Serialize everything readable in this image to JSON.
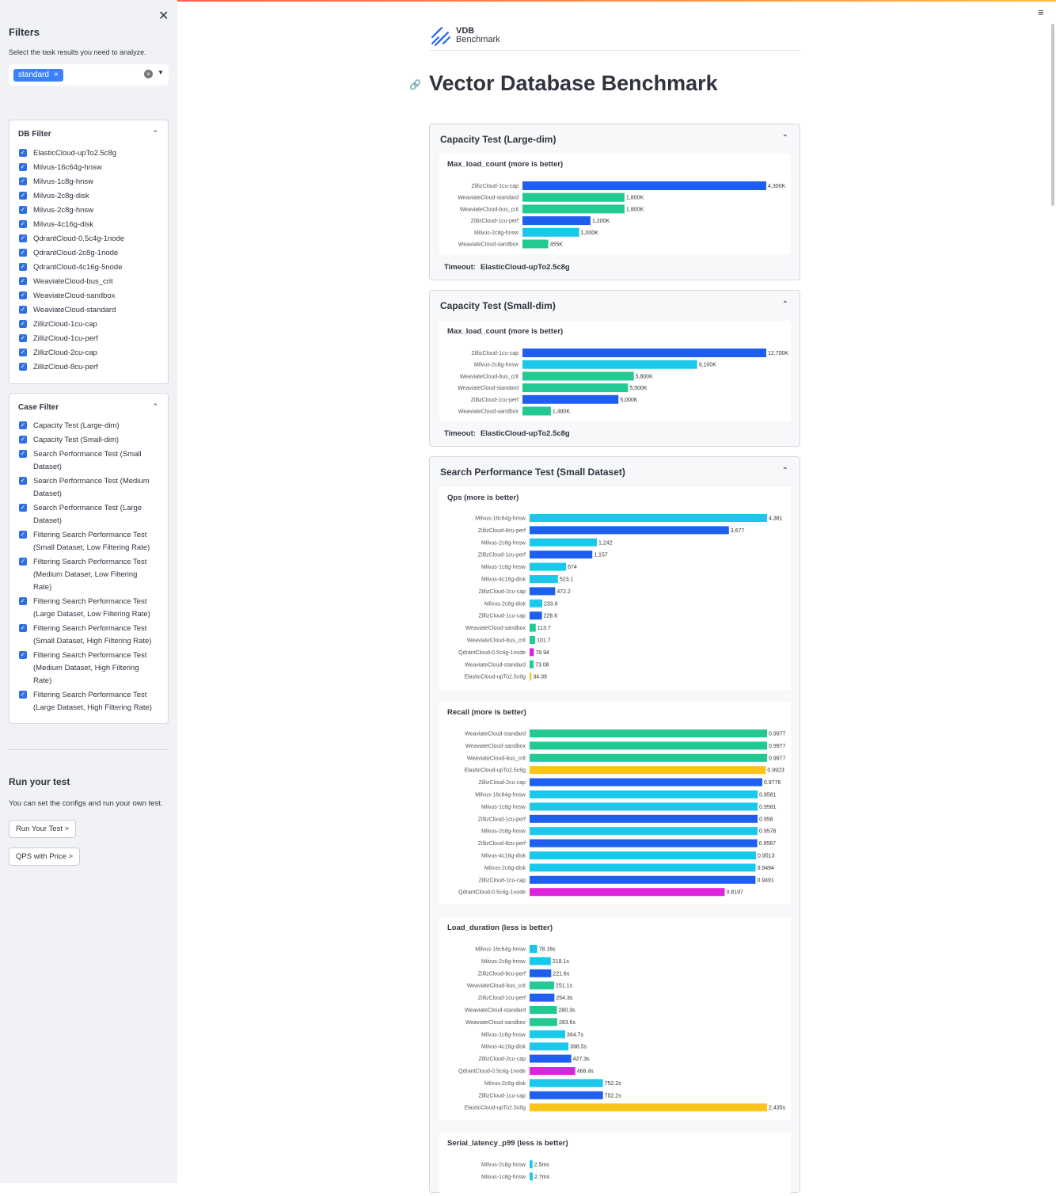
{
  "sidebar": {
    "title": "Filters",
    "description": "Select the task results you need to analyze.",
    "selected_chip": "standard",
    "db_filter": {
      "title": "DB Filter",
      "items": [
        "ElasticCloud-upTo2.5c8g",
        "Milvus-16c64g-hnsw",
        "Milvus-1c8g-hnsw",
        "Milvus-2c8g-disk",
        "Milvus-2c8g-hnsw",
        "Milvus-4c16g-disk",
        "QdrantCloud-0.5c4g-1node",
        "QdrantCloud-2c8g-1node",
        "QdrantCloud-4c16g-5node",
        "WeaviateCloud-bus_crit",
        "WeaviateCloud-sandbox",
        "WeaviateCloud-standard",
        "ZillizCloud-1cu-cap",
        "ZillizCloud-1cu-perf",
        "ZillizCloud-2cu-cap",
        "ZillizCloud-8cu-perf"
      ]
    },
    "case_filter": {
      "title": "Case Filter",
      "items": [
        [
          "Capacity Test (Large-dim)"
        ],
        [
          "Capacity Test (Small-dim)"
        ],
        [
          "Search Performance Test (Small",
          "Dataset)"
        ],
        [
          "Search Performance Test (Medium",
          "Dataset)"
        ],
        [
          "Search Performance Test (Large",
          "Dataset)"
        ],
        [
          "Filtering Search Performance Test",
          "(Small Dataset, Low Filtering Rate)"
        ],
        [
          "Filtering Search Performance Test",
          "(Medium Dataset, Low Filtering",
          "Rate)"
        ],
        [
          "Filtering Search Performance Test",
          "(Large Dataset, Low Filtering Rate)"
        ],
        [
          "Filtering Search Performance Test",
          "(Small Dataset, High Filtering Rate)"
        ],
        [
          "Filtering Search Performance Test",
          "(Medium Dataset, High Filtering",
          "Rate)"
        ],
        [
          "Filtering Search Performance Test",
          "(Large Dataset, High Filtering Rate)"
        ]
      ]
    },
    "run_title": "Run your test",
    "run_desc": "You can set the configs and run your own test.",
    "run_button": "Run Your Test  >",
    "qps_button": "QPS with Price  >"
  },
  "header": {
    "logo_line1": "VDB",
    "logo_line2": "Benchmark",
    "title": "Vector Database Benchmark"
  },
  "colors": {
    "zilliz": "#1f5ff0",
    "milvus": "#1ac8ec",
    "weaviate": "#22c993",
    "qdrant": "#dd22dd",
    "elastic": "#fcc419"
  },
  "sections": [
    {
      "title": "Capacity Test (Large-dim)",
      "timeout_label": "Timeout:",
      "timeout_value": "ElasticCloud-upTo2.5c8g"
    },
    {
      "title": "Capacity Test (Small-dim)",
      "timeout_label": "Timeout:",
      "timeout_value": "ElasticCloud-upTo2.5c8g"
    },
    {
      "title": "Search Performance Test (Small Dataset)"
    }
  ],
  "chart_data": [
    {
      "type": "bar",
      "title": "Max_load_count (more is better)",
      "categories": [
        "ZillizCloud-1cu-cap",
        "WeaviateCloud-standard",
        "WeaviateCloud-bus_crit",
        "ZillizCloud-1cu-perf",
        "Milvus-2c8g-hnsw",
        "WeaviateCloud-sandbox"
      ],
      "values": [
        4300000,
        1800000,
        1800000,
        1200000,
        1000000,
        455000
      ],
      "labels": [
        "4,300K",
        "1,800K",
        "1,800K",
        "1,200K",
        "1,000K",
        "455K"
      ],
      "xlim": [
        0,
        4300000
      ]
    },
    {
      "type": "bar",
      "title": "Max_load_count (more is better)",
      "categories": [
        "ZillizCloud-1cu-cap",
        "Milvus-2c8g-hnsw",
        "WeaviateCloud-bus_crit",
        "WeaviateCloud-standard",
        "ZillizCloud-1cu-perf",
        "WeaviateCloud-sandbox"
      ],
      "values": [
        12700000,
        9100000,
        5800000,
        5500000,
        5000000,
        1480000
      ],
      "labels": [
        "12,700K",
        "9,100K",
        "5,800K",
        "5,500K",
        "5,000K",
        "1,480K"
      ],
      "xlim": [
        0,
        12700000
      ]
    },
    {
      "type": "bar",
      "title": "Qps (more is better)",
      "categories": [
        "Milvus-16c64g-hnsw",
        "ZillizCloud-8cu-perf",
        "Milvus-2c8g-hnsw",
        "ZillizCloud-1cu-perf",
        "Milvus-1c8g-hnsw",
        "Milvus-4c16g-disk",
        "ZillizCloud-2cu-cap",
        "Milvus-2c8g-disk",
        "ZillizCloud-1cu-cap",
        "WeaviateCloud-sandbox",
        "WeaviateCloud-bus_crit",
        "QdrantCloud-0.5c4g-1node",
        "WeaviateCloud-standard",
        "ElasticCloud-upTo2.5c8g"
      ],
      "values": [
        4381,
        3677,
        1242,
        1157,
        674,
        523.1,
        472.2,
        233.6,
        228.6,
        113.7,
        101.7,
        78.94,
        73.08,
        34.39
      ],
      "labels": [
        "4,381",
        "3,677",
        "1,242",
        "1,157",
        "674",
        "523.1",
        "472.2",
        "233.6",
        "228.6",
        "113.7",
        "101.7",
        "78.94",
        "73.08",
        "34.39"
      ],
      "xlim": [
        0,
        4381
      ]
    },
    {
      "type": "bar",
      "title": "Recall (more is better)",
      "categories": [
        "WeaviateCloud-standard",
        "WeaviateCloud-sandbox",
        "WeaviateCloud-bus_crit",
        "ElasticCloud-upTo2.5c8g",
        "ZillizCloud-2cu-cap",
        "Milvus-16c64g-hnsw",
        "Milvus-1c8g-hnsw",
        "ZillizCloud-1cu-perf",
        "Milvus-2c8g-hnsw",
        "ZillizCloud-8cu-perf",
        "Milvus-4c16g-disk",
        "Milvus-2c8g-disk",
        "ZillizCloud-1cu-cap",
        "QdrantCloud-0.5c4g-1node"
      ],
      "values": [
        0.9977,
        0.9977,
        0.9977,
        0.9923,
        0.9776,
        0.9581,
        0.9581,
        0.958,
        0.9578,
        0.9567,
        0.9513,
        0.9494,
        0.9491,
        0.8197
      ],
      "labels": [
        "0.9977",
        "0.9977",
        "0.9977",
        "0.9923",
        "0.9776",
        "0.9581",
        "0.9581",
        "0.958",
        "0.9578",
        "0.9567",
        "0.9513",
        "0.9494",
        "0.9491",
        "0.8197"
      ],
      "xlim": [
        0,
        0.9977
      ]
    },
    {
      "type": "bar",
      "title": "Load_duration (less is better)",
      "categories": [
        "Milvus-16c64g-hnsw",
        "Milvus-2c8g-hnsw",
        "ZillizCloud-8cu-perf",
        "WeaviateCloud-bus_crit",
        "ZillizCloud-1cu-perf",
        "WeaviateCloud-standard",
        "WeaviateCloud-sandbox",
        "Milvus-1c8g-hnsw",
        "Milvus-4c16g-disk",
        "ZillizCloud-2cu-cap",
        "QdrantCloud-0.5c4g-1node",
        "Milvus-2c8g-disk",
        "ZillizCloud-1cu-cap",
        "ElasticCloud-upTo2.5c8g"
      ],
      "values": [
        78.16,
        218.1,
        221.6,
        251.1,
        254.3,
        280.3,
        283.6,
        364.7,
        398.5,
        427.3,
        468.4,
        752.2,
        752.2,
        2435
      ],
      "labels": [
        "78.16s",
        "218.1s",
        "221.6s",
        "251.1s",
        "254.3s",
        "280.3s",
        "283.6s",
        "364.7s",
        "398.5s",
        "427.3s",
        "468.4s",
        "752.2s",
        "752.2s",
        "2,435s"
      ],
      "xlim": [
        0,
        2435
      ]
    },
    {
      "type": "bar",
      "title": "Serial_latency_p99 (less is better)",
      "categories": [
        "Milvus-2c8g-hnsw",
        "Milvus-1c8g-hnsw"
      ],
      "values": [
        2.5,
        2.7
      ],
      "labels": [
        "2.5ms",
        "2.7ms"
      ],
      "xlim": [
        0,
        100
      ]
    }
  ]
}
